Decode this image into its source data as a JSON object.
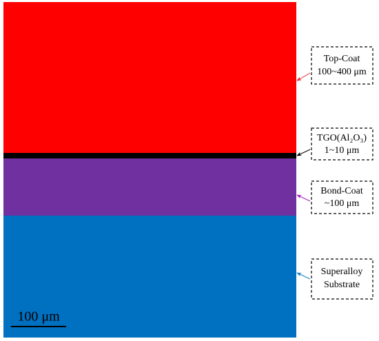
{
  "layers": [
    {
      "lines": [
        "Top-Coat",
        "100~400 μm"
      ]
    },
    {
      "lines": [
        "TGO(Al₂O₃)",
        "1~10 μm"
      ]
    },
    {
      "lines": [
        "Bond-Coat",
        "~100 μm"
      ]
    },
    {
      "lines": [
        "Superalloy",
        "Substrate"
      ]
    }
  ],
  "scale_bar": "100 μm"
}
